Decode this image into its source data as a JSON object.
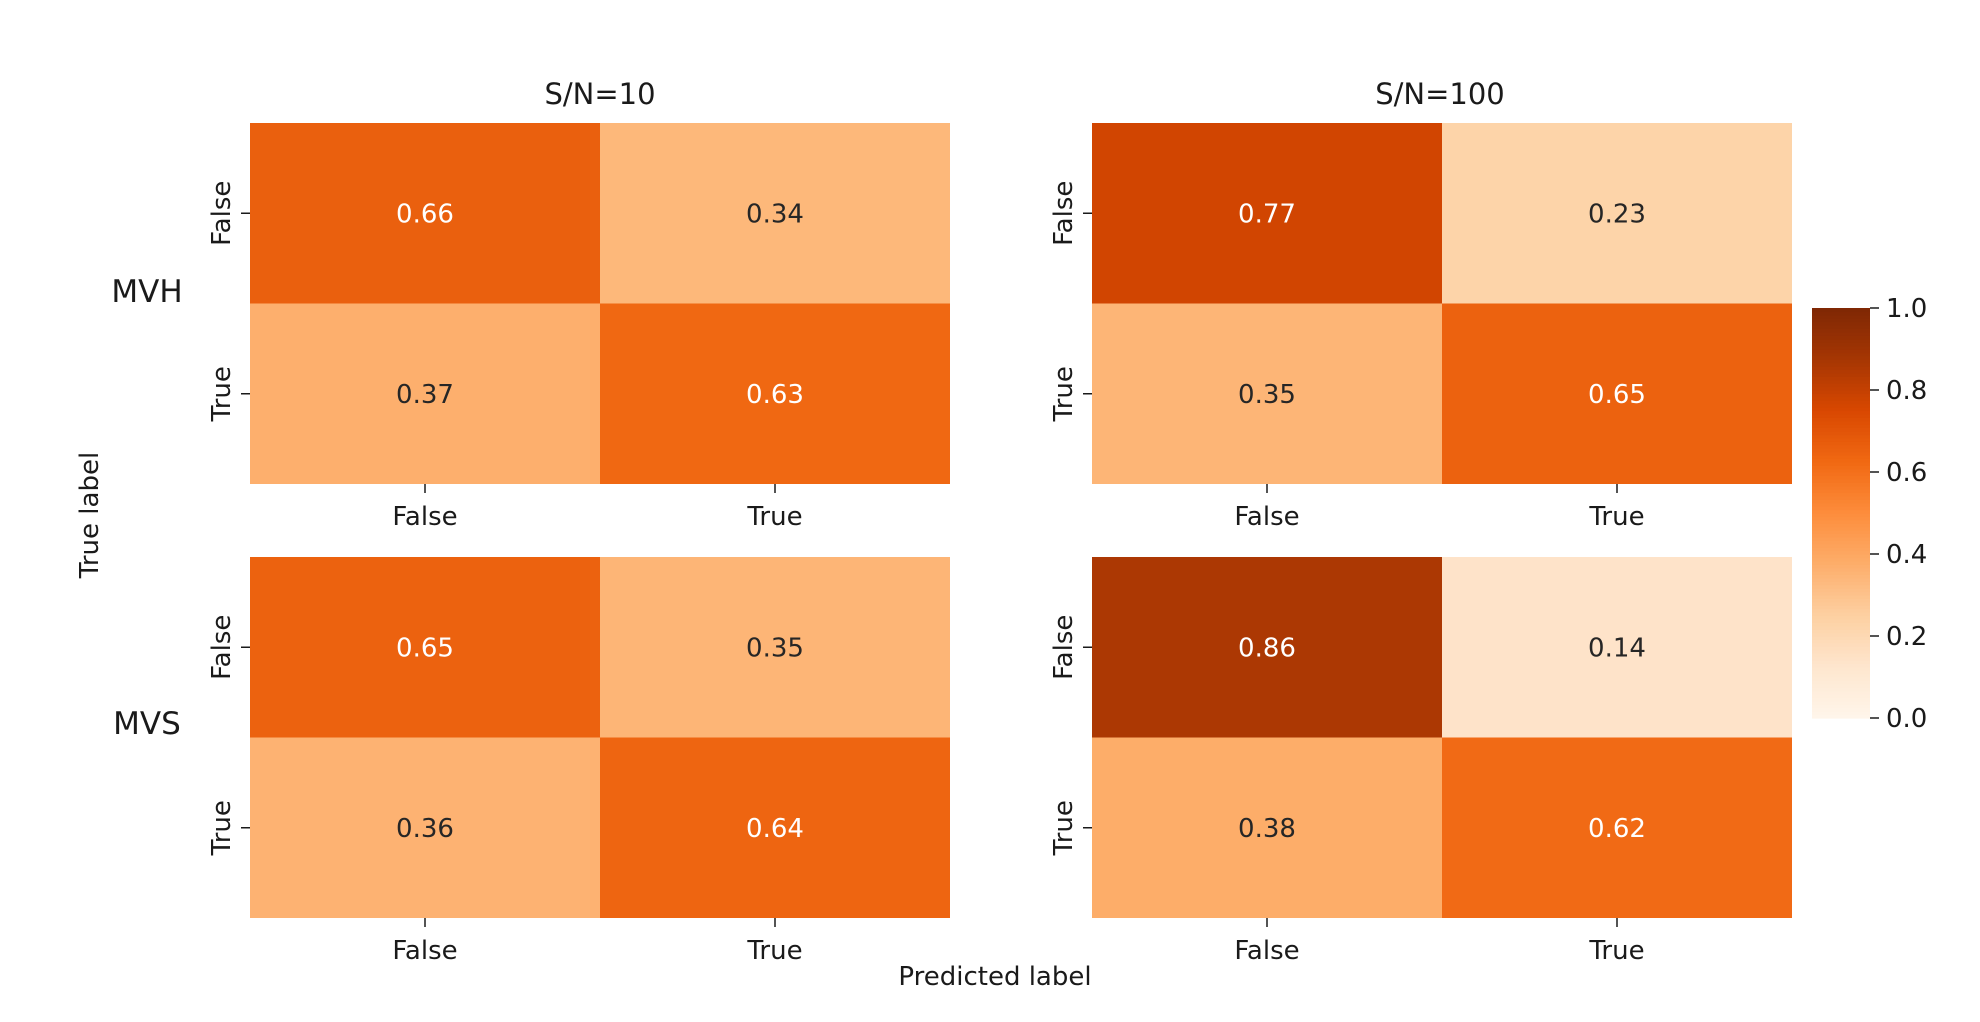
{
  "chart_data": {
    "type": "heatmap",
    "columns": [
      "S/N=10",
      "S/N=100"
    ],
    "rows": [
      "MVH",
      "MVS"
    ],
    "ylabel": "True label",
    "xlabel": "Predicted label",
    "class_labels": [
      "False",
      "True"
    ],
    "matrices": [
      {
        "row": "MVH",
        "column": "S/N=10",
        "values": [
          [
            0.66,
            0.34
          ],
          [
            0.37,
            0.63
          ]
        ]
      },
      {
        "row": "MVH",
        "column": "S/N=100",
        "values": [
          [
            0.77,
            0.23
          ],
          [
            0.35,
            0.65
          ]
        ]
      },
      {
        "row": "MVS",
        "column": "S/N=10",
        "values": [
          [
            0.65,
            0.35
          ],
          [
            0.36,
            0.64
          ]
        ]
      },
      {
        "row": "MVS",
        "column": "S/N=100",
        "values": [
          [
            0.86,
            0.14
          ],
          [
            0.38,
            0.62
          ]
        ]
      }
    ],
    "colorbar": {
      "range": [
        0.0,
        1.0
      ],
      "ticks": [
        "0.0",
        "0.2",
        "0.4",
        "0.6",
        "0.8",
        "1.0"
      ],
      "colormap": "Oranges"
    }
  }
}
